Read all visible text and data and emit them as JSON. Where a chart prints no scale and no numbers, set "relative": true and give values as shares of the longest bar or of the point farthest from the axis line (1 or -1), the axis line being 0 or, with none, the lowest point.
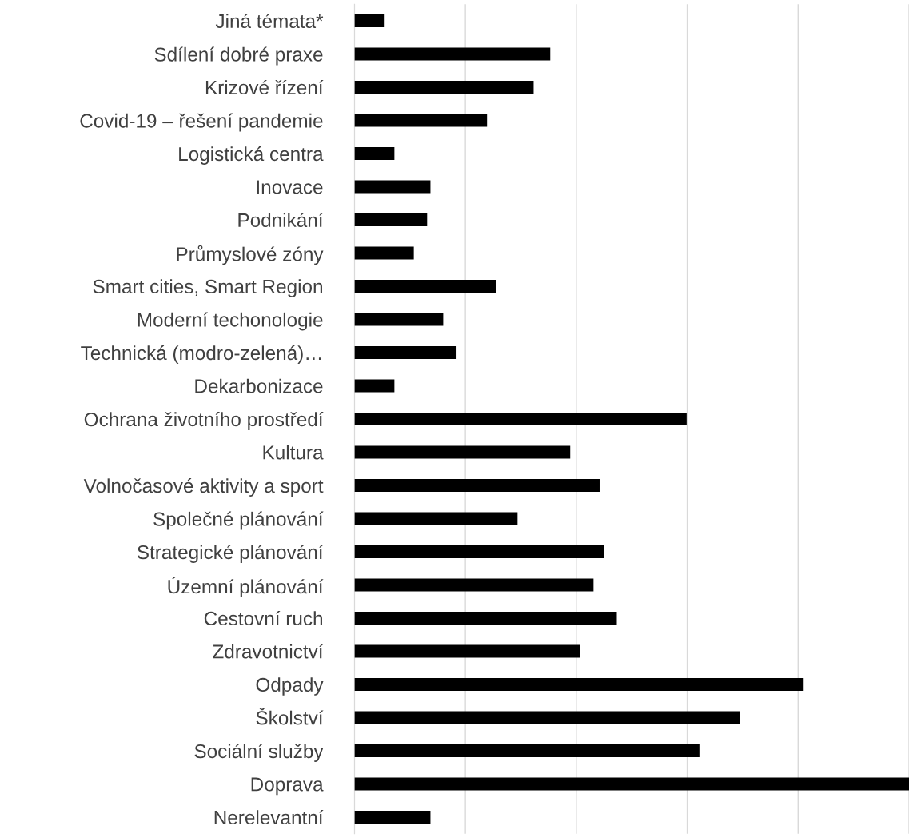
{
  "chart_data": {
    "type": "bar",
    "orientation": "horizontal",
    "relative": true,
    "grid": "x",
    "legend": false,
    "categories": [
      "Jiná témata*",
      "Sdílení dobré praxe",
      "Krizové řízení",
      "Covid-19 – řešení pandemie",
      "Logistická centra",
      "Inovace",
      "Podnikání",
      "Průmyslové zóny",
      "Smart cities, Smart Region",
      "Moderní techonologie",
      "Technická (modro-zelená)…",
      "Dekarbonizace",
      "Ochrana životního prostředí",
      "Kultura",
      "Volnočasové aktivity a sport",
      "Společné plánování",
      "Strategické plánování",
      "Územní plánování",
      "Cestovní ruch",
      "Zdravotnictví",
      "Odpady",
      "Školství",
      "Sociální služby",
      "Doprava",
      "Nerelevantní"
    ],
    "values": [
      0.053,
      0.353,
      0.323,
      0.239,
      0.072,
      0.137,
      0.131,
      0.107,
      0.256,
      0.16,
      0.184,
      0.072,
      0.599,
      0.389,
      0.442,
      0.294,
      0.45,
      0.431,
      0.473,
      0.406,
      0.81,
      0.695,
      0.622,
      1.0,
      0.137
    ],
    "color": "#000000"
  }
}
